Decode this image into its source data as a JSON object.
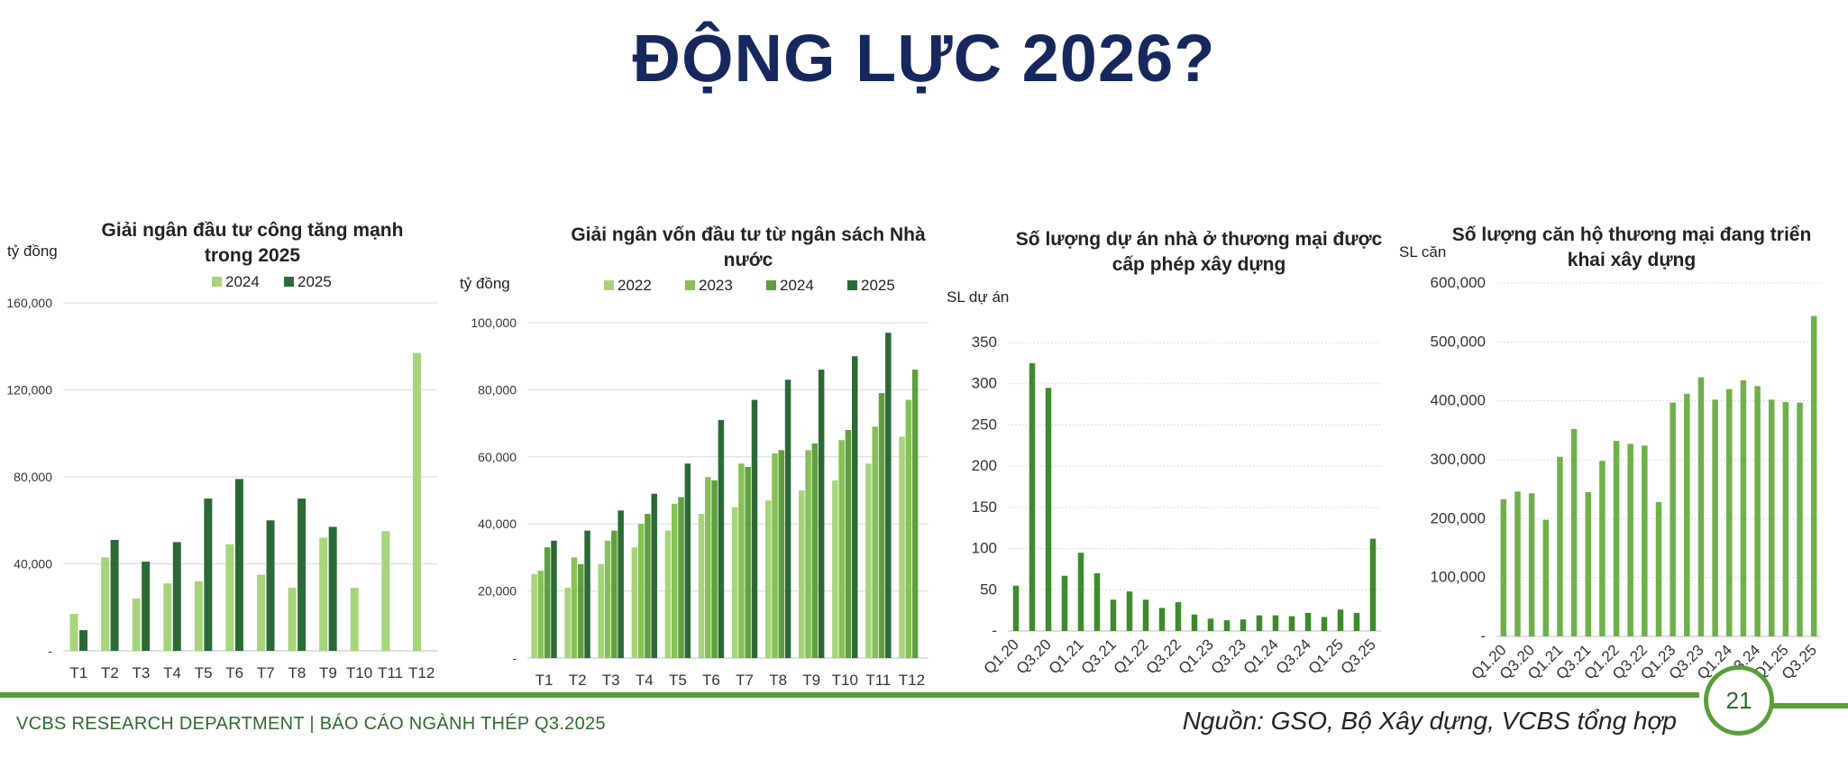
{
  "page": {
    "title": "ĐỘNG LỰC 2026?",
    "footer_left": "VCBS RESEARCH DEPARTMENT | BÁO CÁO NGÀNH THÉP Q3.2025",
    "footer_right": "Nguồn: GSO, Bộ Xây dựng, VCBS tổng hợp",
    "page_number": "21"
  },
  "chart_data": [
    {
      "type": "bar",
      "title_lines": [
        "Giải ngân đầu tư công tăng mạnh",
        "trong 2025"
      ],
      "ylabel": "tỷ đồng",
      "categories": [
        "T1",
        "T2",
        "T3",
        "T4",
        "T5",
        "T6",
        "T7",
        "T8",
        "T9",
        "T10",
        "T11",
        "T12"
      ],
      "series": [
        {
          "name": "2024",
          "color": "#a6d47a",
          "values": [
            17000,
            43000,
            24000,
            31000,
            32000,
            49000,
            35000,
            29000,
            52000,
            29000,
            55000,
            137000
          ]
        },
        {
          "name": "2025",
          "color": "#2b6a36",
          "values": [
            9500,
            51000,
            41000,
            50000,
            70000,
            79000,
            60000,
            70000,
            57000,
            null,
            null,
            null
          ]
        }
      ],
      "ylim": [
        0,
        160000
      ],
      "yticks": [
        "-",
        "40,000",
        "80,000",
        "120,000",
        "160,000"
      ],
      "ytick_values": [
        0,
        40000,
        80000,
        120000,
        160000
      ],
      "grid": true,
      "legend": "top"
    },
    {
      "type": "bar",
      "title_lines": [
        "Giải ngân vốn đầu tư từ ngân sách Nhà",
        "nước"
      ],
      "ylabel": "tỷ đồng",
      "categories": [
        "T1",
        "T2",
        "T3",
        "T4",
        "T5",
        "T6",
        "T7",
        "T8",
        "T9",
        "T10",
        "T11",
        "T12"
      ],
      "series": [
        {
          "name": "2022",
          "color": "#a6d47a",
          "values": [
            25000,
            21000,
            28000,
            33000,
            38000,
            43000,
            45000,
            47000,
            50000,
            53000,
            58000,
            66000
          ]
        },
        {
          "name": "2023",
          "color": "#86c157",
          "values": [
            26000,
            30000,
            35000,
            40000,
            46000,
            54000,
            58000,
            61000,
            62000,
            65000,
            69000,
            77000
          ]
        },
        {
          "name": "2024",
          "color": "#5fa03e",
          "values": [
            33000,
            28000,
            38000,
            43000,
            48000,
            53000,
            57000,
            62000,
            64000,
            68000,
            79000,
            86000
          ]
        },
        {
          "name": "2025",
          "color": "#2b6a36",
          "values": [
            35000,
            38000,
            44000,
            49000,
            58000,
            71000,
            77000,
            83000,
            86000,
            90000,
            97000,
            null
          ]
        }
      ],
      "ylim": [
        0,
        100000
      ],
      "yticks": [
        "-",
        "20,000",
        "40,000",
        "60,000",
        "80,000",
        "100,000"
      ],
      "ytick_values": [
        0,
        20000,
        40000,
        60000,
        80000,
        100000
      ],
      "grid": true,
      "legend": "top"
    },
    {
      "type": "bar",
      "title_lines": [
        "Số lượng dự án nhà ở thương mại được",
        "cấp phép xây dựng"
      ],
      "ylabel": "SL dự án",
      "categories": [
        "Q1.20",
        "Q2.20",
        "Q3.20",
        "Q4.20",
        "Q1.21",
        "Q2.21",
        "Q3.21",
        "Q4.21",
        "Q1.22",
        "Q2.22",
        "Q3.22",
        "Q4.22",
        "Q1.23",
        "Q2.23",
        "Q3.23",
        "Q4.23",
        "Q1.24",
        "Q2.24",
        "Q3.24",
        "Q4.24",
        "Q1.25",
        "Q2.25",
        "Q3.25"
      ],
      "xtick_labels": [
        "Q1.20",
        "",
        "Q3.20",
        "",
        "Q1.21",
        "",
        "Q3.21",
        "",
        "Q1.22",
        "",
        "Q3.22",
        "",
        "Q1.23",
        "",
        "Q3.23",
        "",
        "Q1.24",
        "",
        "Q3.24",
        "",
        "Q1.25",
        "",
        "Q3.25"
      ],
      "series": [
        {
          "name": "",
          "color": "#3f8a2d",
          "values": [
            55,
            325,
            295,
            67,
            95,
            70,
            38,
            48,
            38,
            28,
            35,
            20,
            15,
            13,
            14,
            19,
            19,
            18,
            22,
            17,
            26,
            22,
            112
          ]
        }
      ],
      "ylim": [
        0,
        350
      ],
      "yticks": [
        "-",
        "50",
        "100",
        "150",
        "200",
        "250",
        "300",
        "350"
      ],
      "ytick_values": [
        0,
        50,
        100,
        150,
        200,
        250,
        300,
        350
      ],
      "grid": true
    },
    {
      "type": "bar",
      "title_lines": [
        "Số lượng căn hộ thương mại đang triển",
        "khai xây dựng"
      ],
      "ylabel": "SL căn",
      "categories": [
        "Q1.20",
        "Q2.20",
        "Q3.20",
        "Q4.20",
        "Q1.21",
        "Q2.21",
        "Q3.21",
        "Q4.21",
        "Q1.22",
        "Q2.22",
        "Q3.22",
        "Q4.22",
        "Q1.23",
        "Q2.23",
        "Q3.23",
        "Q4.23",
        "Q1.24",
        "Q2.24",
        "Q3.24",
        "Q4.24",
        "Q1.25",
        "Q2.25",
        "Q3.25"
      ],
      "xtick_labels": [
        "Q1.20",
        "",
        "Q3.20",
        "",
        "Q1.21",
        "",
        "Q3.21",
        "",
        "Q1.22",
        "",
        "Q3.22",
        "",
        "Q1.23",
        "",
        "Q3.23",
        "",
        "Q1.24",
        "",
        "Q3.24",
        "",
        "Q1.25",
        "",
        "Q3.25"
      ],
      "series": [
        {
          "name": "",
          "color": "#6fb04a",
          "values": [
            233000,
            246000,
            243000,
            198000,
            305000,
            352000,
            245000,
            298000,
            332000,
            327000,
            324000,
            228000,
            397000,
            412000,
            440000,
            402000,
            420000,
            435000,
            425000,
            402000,
            398000,
            397000,
            544000
          ]
        }
      ],
      "ylim": [
        0,
        600000
      ],
      "yticks": [
        "-",
        "100,000",
        "200,000",
        "300,000",
        "400,000",
        "500,000",
        "600,000"
      ],
      "ytick_values": [
        0,
        100000,
        200000,
        300000,
        400000,
        500000,
        600000
      ],
      "grid": true
    }
  ]
}
